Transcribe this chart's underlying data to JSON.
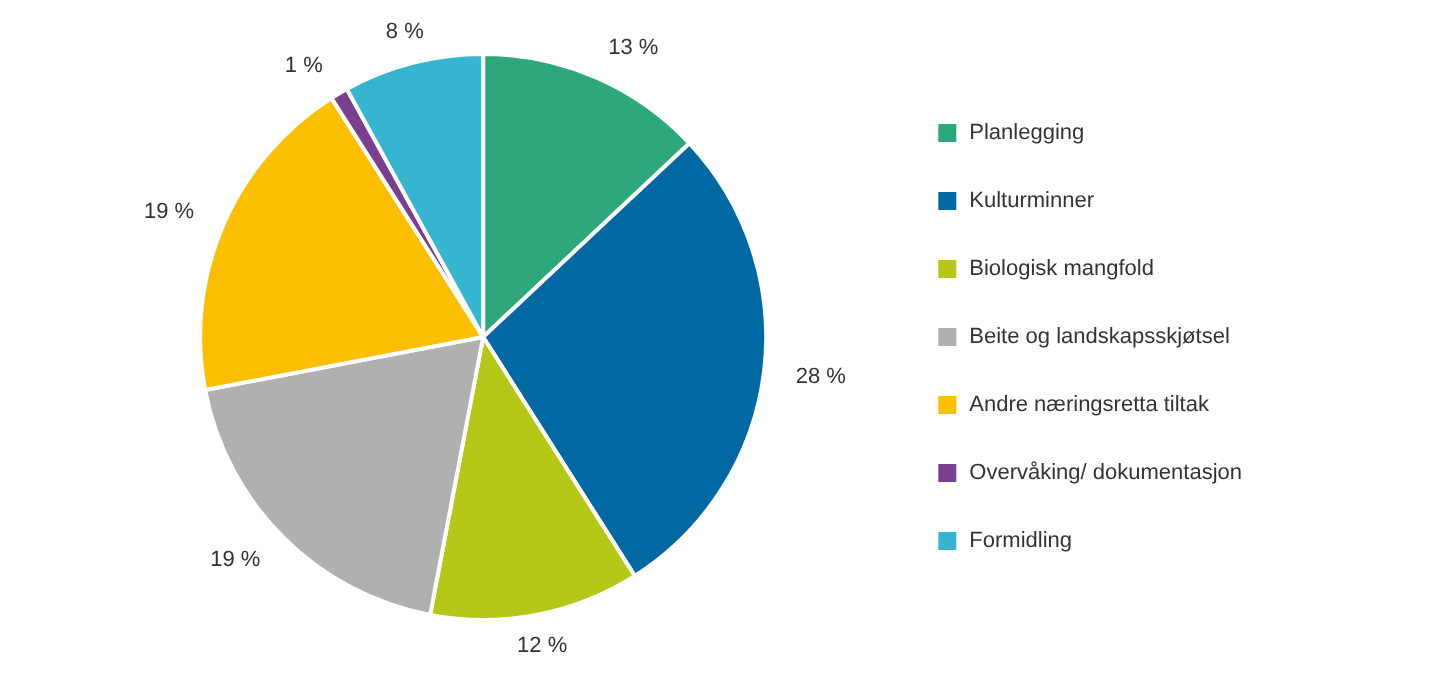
{
  "chart_data": {
    "type": "pie",
    "categories": [
      "Planlegging",
      "Kulturminner",
      "Biologisk mangfold",
      "Beite og landskapsskjøtsel",
      "Andre næringsretta tiltak",
      "Overvåking/ dokumentasjon",
      "Formidling"
    ],
    "values": [
      13,
      28,
      12,
      19,
      19,
      1,
      8
    ],
    "colors": [
      "#2ea87a",
      "#0068a3",
      "#b5c817",
      "#b0b0b0",
      "#fbbf00",
      "#7a3f8f",
      "#35b5d0"
    ],
    "value_labels": [
      "13 %",
      "28 %",
      "12 %",
      "19 %",
      "19 %",
      "1 %",
      "8 %"
    ],
    "legend": "right"
  }
}
